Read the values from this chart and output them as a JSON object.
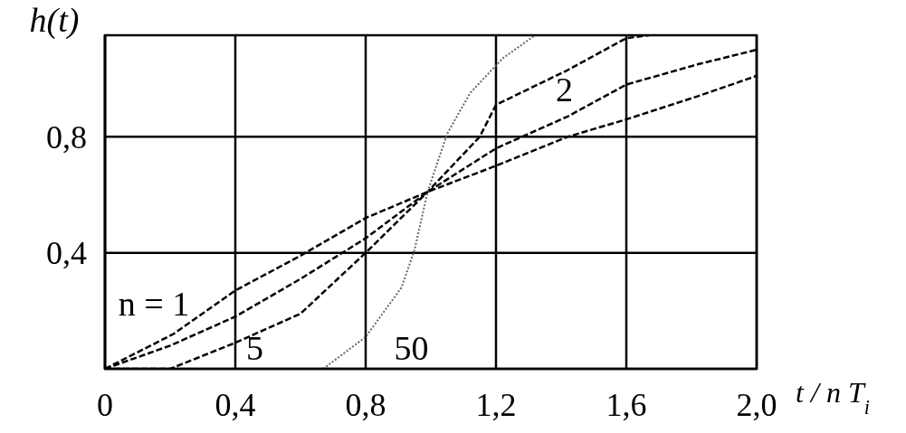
{
  "chart_data": {
    "type": "line",
    "xlabel": "t / n T$_{i}$",
    "ylabel": "h(t)",
    "xlim": [
      0,
      2.0
    ],
    "ylim": [
      0,
      1.15
    ],
    "xticks": [
      0,
      {
        "value": 0.4,
        "label": "0,4"
      },
      {
        "value": 0.8,
        "label": "0,8"
      },
      {
        "value": 1.2,
        "label": "1,2"
      },
      {
        "value": 1.6,
        "label": "1,6"
      },
      {
        "value": 2.0,
        "label": "2,0"
      }
    ],
    "yticks": [
      {
        "value": 0.4,
        "label": "0,4"
      },
      {
        "value": 0.8,
        "label": "0,8"
      }
    ],
    "grid": true,
    "marker": "none",
    "series": [
      {
        "name": "n = 1",
        "color": "#000000",
        "line_style": "dashed",
        "x": [
          0,
          0.21,
          0.4,
          0.6,
          0.8,
          0.99,
          1.2,
          1.42,
          1.6,
          1.82,
          2.0
        ],
        "values": [
          0,
          0.12,
          0.27,
          0.39,
          0.52,
          0.61,
          0.7,
          0.8,
          0.86,
          0.94,
          1.01
        ]
      },
      {
        "name": "2",
        "color": "#000000",
        "line_style": "dashed",
        "x": [
          0,
          0.2,
          0.4,
          0.6,
          0.8,
          0.99,
          1.2,
          1.42,
          1.6,
          1.82,
          2.0
        ],
        "values": [
          0,
          0.08,
          0.18,
          0.31,
          0.45,
          0.61,
          0.76,
          0.87,
          0.98,
          1.05,
          1.1
        ]
      },
      {
        "name": "5",
        "color": "#000000",
        "line_style": "dashed",
        "x": [
          0,
          0.2,
          0.4,
          0.6,
          0.8,
          0.99,
          1.15,
          1.2,
          1.42,
          1.6,
          1.67
        ],
        "values": [
          0,
          0,
          0.09,
          0.19,
          0.4,
          0.61,
          0.8,
          0.91,
          1.03,
          1.14,
          1.15
        ]
      },
      {
        "name": "50",
        "color": "#666666",
        "line_style": "dotted",
        "x": [
          0.67,
          0.8,
          0.91,
          0.95,
          0.99,
          1.05,
          1.12,
          1.22,
          1.32
        ],
        "values": [
          0,
          0.11,
          0.28,
          0.41,
          0.61,
          0.81,
          0.95,
          1.07,
          1.15
        ]
      }
    ]
  }
}
